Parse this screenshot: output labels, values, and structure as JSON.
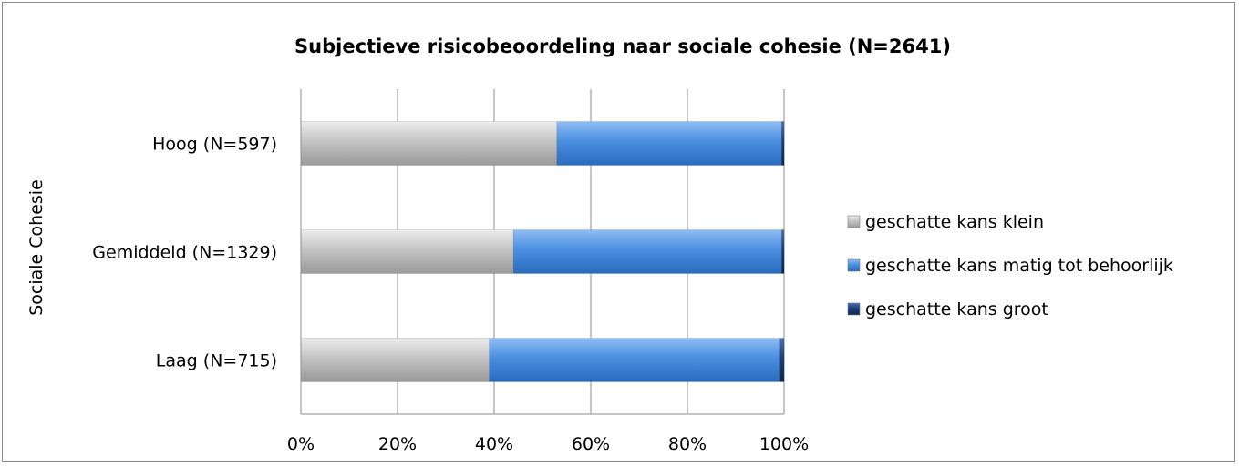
{
  "chart_data": {
    "type": "bar",
    "orientation": "horizontal",
    "stacked": "percent",
    "title": "Subjectieve risicobeoordeling naar sociale cohesie (N=2641)",
    "ylabel": "Sociale Cohesie",
    "xlabel": "",
    "categories": [
      "Hoog (N=597)",
      "Gemiddeld (N=1329)",
      "Laag (N=715)"
    ],
    "xlim": [
      0,
      100
    ],
    "xticks": [
      "0%",
      "20%",
      "40%",
      "60%",
      "80%",
      "100%"
    ],
    "grid": true,
    "legend_position": "right",
    "series": [
      {
        "name": "geschatte kans klein",
        "values": [
          53,
          44,
          39
        ],
        "color": "#c4c4c4"
      },
      {
        "name": "geschatte kans matig tot behoorlijk",
        "values": [
          46.5,
          55.5,
          60
        ],
        "color": "#4a8fe0"
      },
      {
        "name": "geschatte kans groot",
        "values": [
          0.5,
          0.5,
          1
        ],
        "color": "#1b3f7a"
      }
    ]
  }
}
